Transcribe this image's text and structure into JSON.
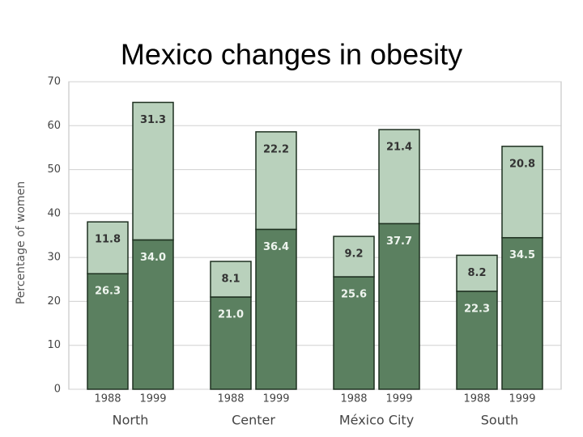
{
  "chart_data": {
    "type": "stacked-bar",
    "title": "Mexico changes in obesity",
    "y_label": "Percentage of women",
    "categories": [
      "1988",
      "1999",
      "1988",
      "1999",
      "1988",
      "1999",
      "1988",
      "1999"
    ],
    "groups": [
      "North",
      "Center",
      "México City",
      "South"
    ],
    "series": [
      {
        "color": "#5b8060",
        "values": [
          26.3,
          34.0,
          21.0,
          36.4,
          25.6,
          37.7,
          22.3,
          34.5
        ],
        "value_labels": [
          "26.3",
          "34.0",
          "21.0",
          "36.4",
          "25.6",
          "37.7",
          "22.3",
          "34.5"
        ]
      },
      {
        "color": "#b9d1bc",
        "values": [
          11.8,
          31.3,
          8.1,
          22.2,
          9.2,
          21.4,
          8.2,
          20.8
        ],
        "value_labels": [
          "11.8",
          "31.3",
          "8.1",
          "22.2",
          "9.2",
          "21.4",
          "8.2",
          "20.8"
        ]
      }
    ],
    "ylim": [
      0,
      70
    ],
    "yticks": [
      0,
      10,
      20,
      30,
      40,
      50,
      60,
      70
    ],
    "grid": true
  }
}
